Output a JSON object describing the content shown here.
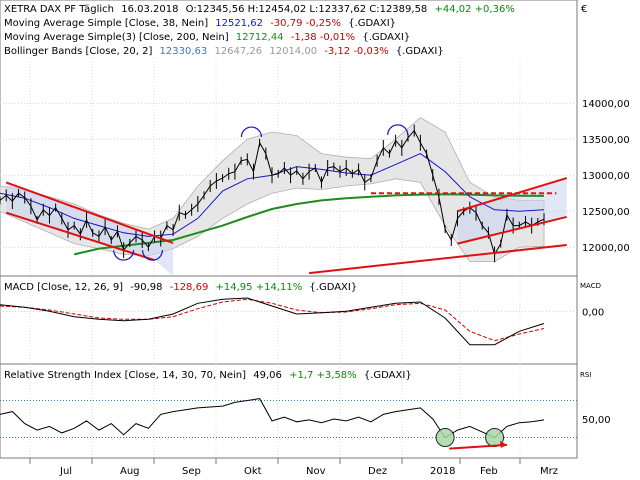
{
  "chart_data": [
    {
      "type": "line",
      "panel": "price",
      "title": "XETRA DAX PF Täglich",
      "date": "16.03.2018",
      "header_values": "O:12345,56 H:12454,02 L:12337,62 C:12389,58",
      "header_change": "+44,02 +0,36%",
      "ylim": [
        11600,
        14600
      ],
      "yticks": [
        12000,
        12500,
        13000,
        13500,
        14000
      ],
      "ytick_labels": [
        "12000,00",
        "12500,00",
        "13000,00",
        "13500,00",
        "14000,00"
      ],
      "xticks": [
        "Jul",
        "Aug",
        "Sep",
        "Okt",
        "Nov",
        "Dez",
        "2018",
        "Feb",
        "Mrz"
      ],
      "x_range_days": [
        0,
        280
      ],
      "indicators": [
        {
          "label": "Moving Average Simple [Close, 38, Nein]",
          "value": "12521,62",
          "change": "-30,79 -0,25%",
          "symbol": "{.GDAXI}",
          "color": "#1515c8"
        },
        {
          "label": "Moving Average Simple(3) [Close, 200, Nein]",
          "value": "12712,44",
          "change": "-1,38 -0,01%",
          "symbol": "{.GDAXI}",
          "color": "#1e8c1e"
        },
        {
          "label": "Bollinger Bands [Close, 20, 2]",
          "value": "12330,63",
          "value2": "12647,26",
          "value3": "12014,00",
          "change": "-3,12 -0,03%",
          "symbol": "{.GDAXI}",
          "color": "#3a78c8"
        }
      ],
      "close_series": [
        [
          0,
          12650
        ],
        [
          3,
          12720
        ],
        [
          6,
          12640
        ],
        [
          9,
          12750
        ],
        [
          12,
          12690
        ],
        [
          15,
          12570
        ],
        [
          18,
          12380
        ],
        [
          21,
          12520
        ],
        [
          24,
          12440
        ],
        [
          27,
          12550
        ],
        [
          30,
          12400
        ],
        [
          33,
          12240
        ],
        [
          36,
          12300
        ],
        [
          39,
          12180
        ],
        [
          42,
          12380
        ],
        [
          45,
          12200
        ],
        [
          48,
          12150
        ],
        [
          51,
          12280
        ],
        [
          54,
          12100
        ],
        [
          57,
          12220
        ],
        [
          60,
          11960
        ],
        [
          63,
          12060
        ],
        [
          66,
          12150
        ],
        [
          69,
          12100
        ],
        [
          72,
          12000
        ],
        [
          75,
          12150
        ],
        [
          78,
          12120
        ],
        [
          81,
          12300
        ],
        [
          84,
          12240
        ],
        [
          87,
          12480
        ],
        [
          90,
          12450
        ],
        [
          93,
          12520
        ],
        [
          96,
          12600
        ],
        [
          99,
          12720
        ],
        [
          102,
          12850
        ],
        [
          105,
          12920
        ],
        [
          108,
          12960
        ],
        [
          111,
          13020
        ],
        [
          114,
          13050
        ],
        [
          117,
          13200
        ],
        [
          120,
          13220
        ],
        [
          123,
          13050
        ],
        [
          126,
          13450
        ],
        [
          129,
          13300
        ],
        [
          132,
          13000
        ],
        [
          135,
          13020
        ],
        [
          138,
          13100
        ],
        [
          141,
          13000
        ],
        [
          144,
          13060
        ],
        [
          147,
          12950
        ],
        [
          150,
          13050
        ],
        [
          153,
          13100
        ],
        [
          156,
          12900
        ],
        [
          159,
          13100
        ],
        [
          162,
          13120
        ],
        [
          165,
          13050
        ],
        [
          168,
          13100
        ],
        [
          171,
          13020
        ],
        [
          174,
          13080
        ],
        [
          177,
          12900
        ],
        [
          180,
          12960
        ],
        [
          183,
          13200
        ],
        [
          186,
          13380
        ],
        [
          189,
          13300
        ],
        [
          192,
          13480
        ],
        [
          195,
          13380
        ],
        [
          198,
          13520
        ],
        [
          201,
          13620
        ],
        [
          204,
          13450
        ],
        [
          207,
          13300
        ],
        [
          210,
          13000
        ],
        [
          213,
          12700
        ],
        [
          216,
          12250
        ],
        [
          219,
          12100
        ],
        [
          222,
          12400
        ],
        [
          225,
          12500
        ],
        [
          228,
          12550
        ],
        [
          231,
          12480
        ],
        [
          234,
          12300
        ],
        [
          237,
          12200
        ],
        [
          240,
          11900
        ],
        [
          243,
          12050
        ],
        [
          246,
          12450
        ],
        [
          249,
          12300
        ],
        [
          252,
          12300
        ],
        [
          255,
          12350
        ],
        [
          258,
          12300
        ],
        [
          261,
          12350
        ],
        [
          264,
          12389
        ]
      ],
      "ma38_series": [
        [
          0,
          12750
        ],
        [
          12,
          12680
        ],
        [
          24,
          12550
        ],
        [
          36,
          12400
        ],
        [
          48,
          12300
        ],
        [
          60,
          12200
        ],
        [
          72,
          12150
        ],
        [
          84,
          12180
        ],
        [
          96,
          12400
        ],
        [
          108,
          12780
        ],
        [
          120,
          12950
        ],
        [
          132,
          13000
        ],
        [
          144,
          13120
        ],
        [
          156,
          13080
        ],
        [
          168,
          13030
        ],
        [
          180,
          13000
        ],
        [
          192,
          13150
        ],
        [
          204,
          13300
        ],
        [
          216,
          13050
        ],
        [
          228,
          12700
        ],
        [
          240,
          12520
        ],
        [
          252,
          12500
        ],
        [
          264,
          12521
        ]
      ],
      "ma200_series": [
        [
          36,
          11900
        ],
        [
          48,
          11980
        ],
        [
          60,
          12020
        ],
        [
          72,
          12060
        ],
        [
          84,
          12100
        ],
        [
          96,
          12200
        ],
        [
          108,
          12300
        ],
        [
          120,
          12420
        ],
        [
          132,
          12530
        ],
        [
          144,
          12600
        ],
        [
          156,
          12650
        ],
        [
          168,
          12680
        ],
        [
          180,
          12700
        ],
        [
          192,
          12720
        ],
        [
          204,
          12730
        ],
        [
          216,
          12735
        ],
        [
          228,
          12730
        ],
        [
          240,
          12720
        ],
        [
          252,
          12715
        ],
        [
          264,
          12712
        ]
      ],
      "bollinger_upper": [
        [
          0,
          12850
        ],
        [
          12,
          12800
        ],
        [
          24,
          12700
        ],
        [
          36,
          12600
        ],
        [
          48,
          12450
        ],
        [
          60,
          12330
        ],
        [
          72,
          12250
        ],
        [
          84,
          12400
        ],
        [
          96,
          12850
        ],
        [
          108,
          13200
        ],
        [
          120,
          13500
        ],
        [
          132,
          13600
        ],
        [
          144,
          13550
        ],
        [
          156,
          13300
        ],
        [
          168,
          13250
        ],
        [
          180,
          13230
        ],
        [
          192,
          13500
        ],
        [
          204,
          13800
        ],
        [
          216,
          13600
        ],
        [
          228,
          12900
        ],
        [
          240,
          12700
        ],
        [
          252,
          12650
        ],
        [
          264,
          12647
        ]
      ],
      "bollinger_lower": [
        [
          0,
          12500
        ],
        [
          12,
          12350
        ],
        [
          24,
          12200
        ],
        [
          36,
          12050
        ],
        [
          48,
          11980
        ],
        [
          60,
          11900
        ],
        [
          72,
          11880
        ],
        [
          84,
          11980
        ],
        [
          96,
          12150
        ],
        [
          108,
          12400
        ],
        [
          120,
          12600
        ],
        [
          132,
          12750
        ],
        [
          144,
          12820
        ],
        [
          156,
          12800
        ],
        [
          168,
          12850
        ],
        [
          180,
          12880
        ],
        [
          192,
          12950
        ],
        [
          204,
          12900
        ],
        [
          216,
          12300
        ],
        [
          228,
          11800
        ],
        [
          240,
          11800
        ],
        [
          252,
          12000
        ],
        [
          264,
          12014
        ]
      ],
      "annotations": [
        {
          "kind": "down-channel-upper",
          "from": [
            3,
            12900
          ],
          "to": [
            84,
            12060
          ]
        },
        {
          "kind": "down-channel-lower",
          "from": [
            3,
            12480
          ],
          "to": [
            75,
            11820
          ]
        },
        {
          "kind": "support-line",
          "from": [
            150,
            11640
          ],
          "to": [
            275,
            12030
          ]
        },
        {
          "kind": "resistance-dashed",
          "from": [
            180,
            12750
          ],
          "to": [
            270,
            12750
          ]
        },
        {
          "kind": "triangle-upper",
          "from": [
            222,
            12500
          ],
          "to": [
            275,
            12960
          ]
        },
        {
          "kind": "triangle-lower",
          "from": [
            222,
            12050
          ],
          "to": [
            275,
            12420
          ]
        }
      ]
    },
    {
      "type": "line",
      "panel": "macd",
      "label": "MACD [Close, 12, 26, 9]",
      "value": "-90,98",
      "value2": "-128,69",
      "change": "+14,95 +14,11%",
      "symbol": "{.GDAXI}",
      "axis_title": "MACD",
      "ylim": [
        -380,
        130
      ],
      "yticks": [
        0
      ],
      "ytick_labels": [
        "0,00"
      ],
      "macd_series": [
        [
          0,
          50
        ],
        [
          12,
          30
        ],
        [
          24,
          0
        ],
        [
          36,
          -40
        ],
        [
          48,
          -60
        ],
        [
          60,
          -70
        ],
        [
          72,
          -60
        ],
        [
          84,
          -20
        ],
        [
          96,
          60
        ],
        [
          108,
          90
        ],
        [
          120,
          100
        ],
        [
          132,
          40
        ],
        [
          144,
          -20
        ],
        [
          156,
          -10
        ],
        [
          168,
          0
        ],
        [
          180,
          30
        ],
        [
          192,
          60
        ],
        [
          204,
          70
        ],
        [
          216,
          -50
        ],
        [
          228,
          -250
        ],
        [
          240,
          -250
        ],
        [
          252,
          -150
        ],
        [
          264,
          -91
        ]
      ],
      "signal_series": [
        [
          0,
          40
        ],
        [
          12,
          30
        ],
        [
          24,
          10
        ],
        [
          36,
          -20
        ],
        [
          48,
          -50
        ],
        [
          60,
          -60
        ],
        [
          72,
          -60
        ],
        [
          84,
          -40
        ],
        [
          96,
          20
        ],
        [
          108,
          70
        ],
        [
          120,
          90
        ],
        [
          132,
          60
        ],
        [
          144,
          10
        ],
        [
          156,
          -10
        ],
        [
          168,
          -5
        ],
        [
          180,
          20
        ],
        [
          192,
          50
        ],
        [
          204,
          60
        ],
        [
          216,
          10
        ],
        [
          228,
          -150
        ],
        [
          240,
          -220
        ],
        [
          252,
          -170
        ],
        [
          264,
          -129
        ]
      ]
    },
    {
      "type": "line",
      "panel": "rsi",
      "label": "Relative Strength Index [Close, 14, 30, 70, Nein]",
      "value": "49,06",
      "change": "+1,7 +3,58%",
      "symbol": "{.GDAXI}",
      "axis_title": "RSI",
      "ylim": [
        10,
        90
      ],
      "yticks": [
        50
      ],
      "ytick_labels": [
        "50,00"
      ],
      "levels": [
        30,
        70
      ],
      "rsi_series": [
        [
          0,
          55
        ],
        [
          6,
          58
        ],
        [
          12,
          45
        ],
        [
          18,
          38
        ],
        [
          24,
          42
        ],
        [
          30,
          35
        ],
        [
          36,
          40
        ],
        [
          42,
          48
        ],
        [
          48,
          38
        ],
        [
          54,
          45
        ],
        [
          60,
          33
        ],
        [
          66,
          45
        ],
        [
          72,
          40
        ],
        [
          78,
          55
        ],
        [
          84,
          58
        ],
        [
          90,
          60
        ],
        [
          96,
          62
        ],
        [
          102,
          63
        ],
        [
          108,
          64
        ],
        [
          114,
          68
        ],
        [
          120,
          70
        ],
        [
          126,
          72
        ],
        [
          132,
          48
        ],
        [
          138,
          52
        ],
        [
          144,
          47
        ],
        [
          150,
          49
        ],
        [
          156,
          46
        ],
        [
          162,
          50
        ],
        [
          168,
          48
        ],
        [
          174,
          52
        ],
        [
          180,
          47
        ],
        [
          186,
          55
        ],
        [
          192,
          58
        ],
        [
          198,
          60
        ],
        [
          204,
          62
        ],
        [
          210,
          50
        ],
        [
          216,
          30
        ],
        [
          222,
          38
        ],
        [
          228,
          42
        ],
        [
          234,
          36
        ],
        [
          240,
          30
        ],
        [
          246,
          42
        ],
        [
          252,
          46
        ],
        [
          258,
          47
        ],
        [
          264,
          49
        ]
      ]
    }
  ]
}
